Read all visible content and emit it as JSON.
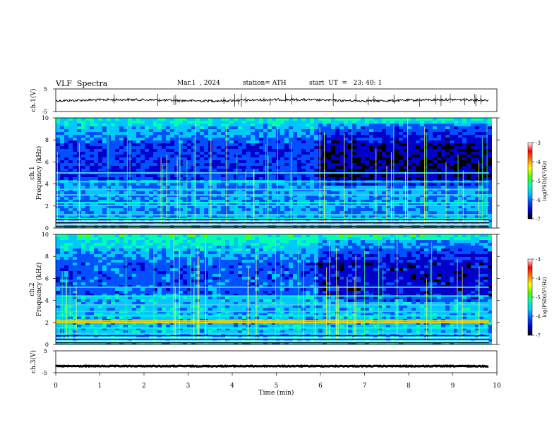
{
  "header": {
    "title": "VLF  Spectra",
    "date": "Mar.1  , 2024",
    "station": "station= ATH",
    "start_ut": "start  UT  =   23: 40: 1"
  },
  "chart_data": [
    {
      "type": "line",
      "panel": "ch1-waveform",
      "ylabel": "ch.1(V)",
      "ylim": [
        -5,
        5
      ],
      "yticks": [
        "5",
        "-5"
      ],
      "xlim": [
        0,
        10
      ],
      "level_v": 0.0,
      "color": "#000000"
    },
    {
      "type": "heatmap",
      "panel": "ch1-spectrogram",
      "ylabel": "ch.1",
      "ylabel2": "Frequency  (kHz)",
      "ylim": [
        0,
        10
      ],
      "yticks": [
        "0",
        "2",
        "4",
        "6",
        "8",
        "10"
      ],
      "xlim": [
        0,
        10
      ],
      "data_end_min": 9.82,
      "colorbar": {
        "label": "log(PSD)(V²/Hz)",
        "range": [
          -7,
          -3
        ],
        "ticks": [
          "-3",
          "-4",
          "-5",
          "-6",
          "-7"
        ],
        "colors": [
          "#000000",
          "#0000c8",
          "#0050ff",
          "#00c8ff",
          "#00ffb0",
          "#50ff00",
          "#ffff00",
          "#ff8000",
          "#ff0000",
          "#ffffff"
        ]
      },
      "bands_khz": [
        0.15,
        0.35,
        0.6,
        0.85,
        1.2,
        2.05,
        2.3,
        3.0,
        3.5,
        4.2,
        5.0
      ]
    },
    {
      "type": "heatmap",
      "panel": "ch2-spectrogram",
      "ylabel": "ch.2",
      "ylabel2": "Frequency  (kHz)",
      "ylim": [
        0,
        10
      ],
      "yticks": [
        "0",
        "2",
        "4",
        "6",
        "8",
        "10"
      ],
      "xlim": [
        0,
        10
      ],
      "data_end_min": 9.82,
      "colorbar": {
        "label": "log(PSD)(V²/Hz)",
        "range": [
          -7,
          -3
        ],
        "ticks": [
          "-3",
          "-4",
          "-5",
          "-6",
          "-7"
        ],
        "colors": [
          "#000000",
          "#0000c8",
          "#0050ff",
          "#00c8ff",
          "#00ffb0",
          "#50ff00",
          "#ffff00",
          "#ff8000",
          "#ff0000",
          "#ffffff"
        ]
      },
      "bands_khz": [
        0.2,
        0.5,
        1.0,
        1.5,
        2.0,
        2.15,
        2.6,
        3.0,
        3.6,
        4.4,
        5.2
      ]
    },
    {
      "type": "line",
      "panel": "ch3-waveform",
      "ylabel": "ch.3(V)",
      "ylim": [
        -5,
        5
      ],
      "yticks": [
        "5",
        "-5"
      ],
      "xlim": [
        0,
        10
      ],
      "level_v": -2.0,
      "color": "#000000"
    }
  ],
  "x_axis": {
    "label": "Time  (min)",
    "ticks": [
      "0",
      "1",
      "2",
      "3",
      "4",
      "5",
      "6",
      "7",
      "8",
      "9",
      "10"
    ]
  }
}
